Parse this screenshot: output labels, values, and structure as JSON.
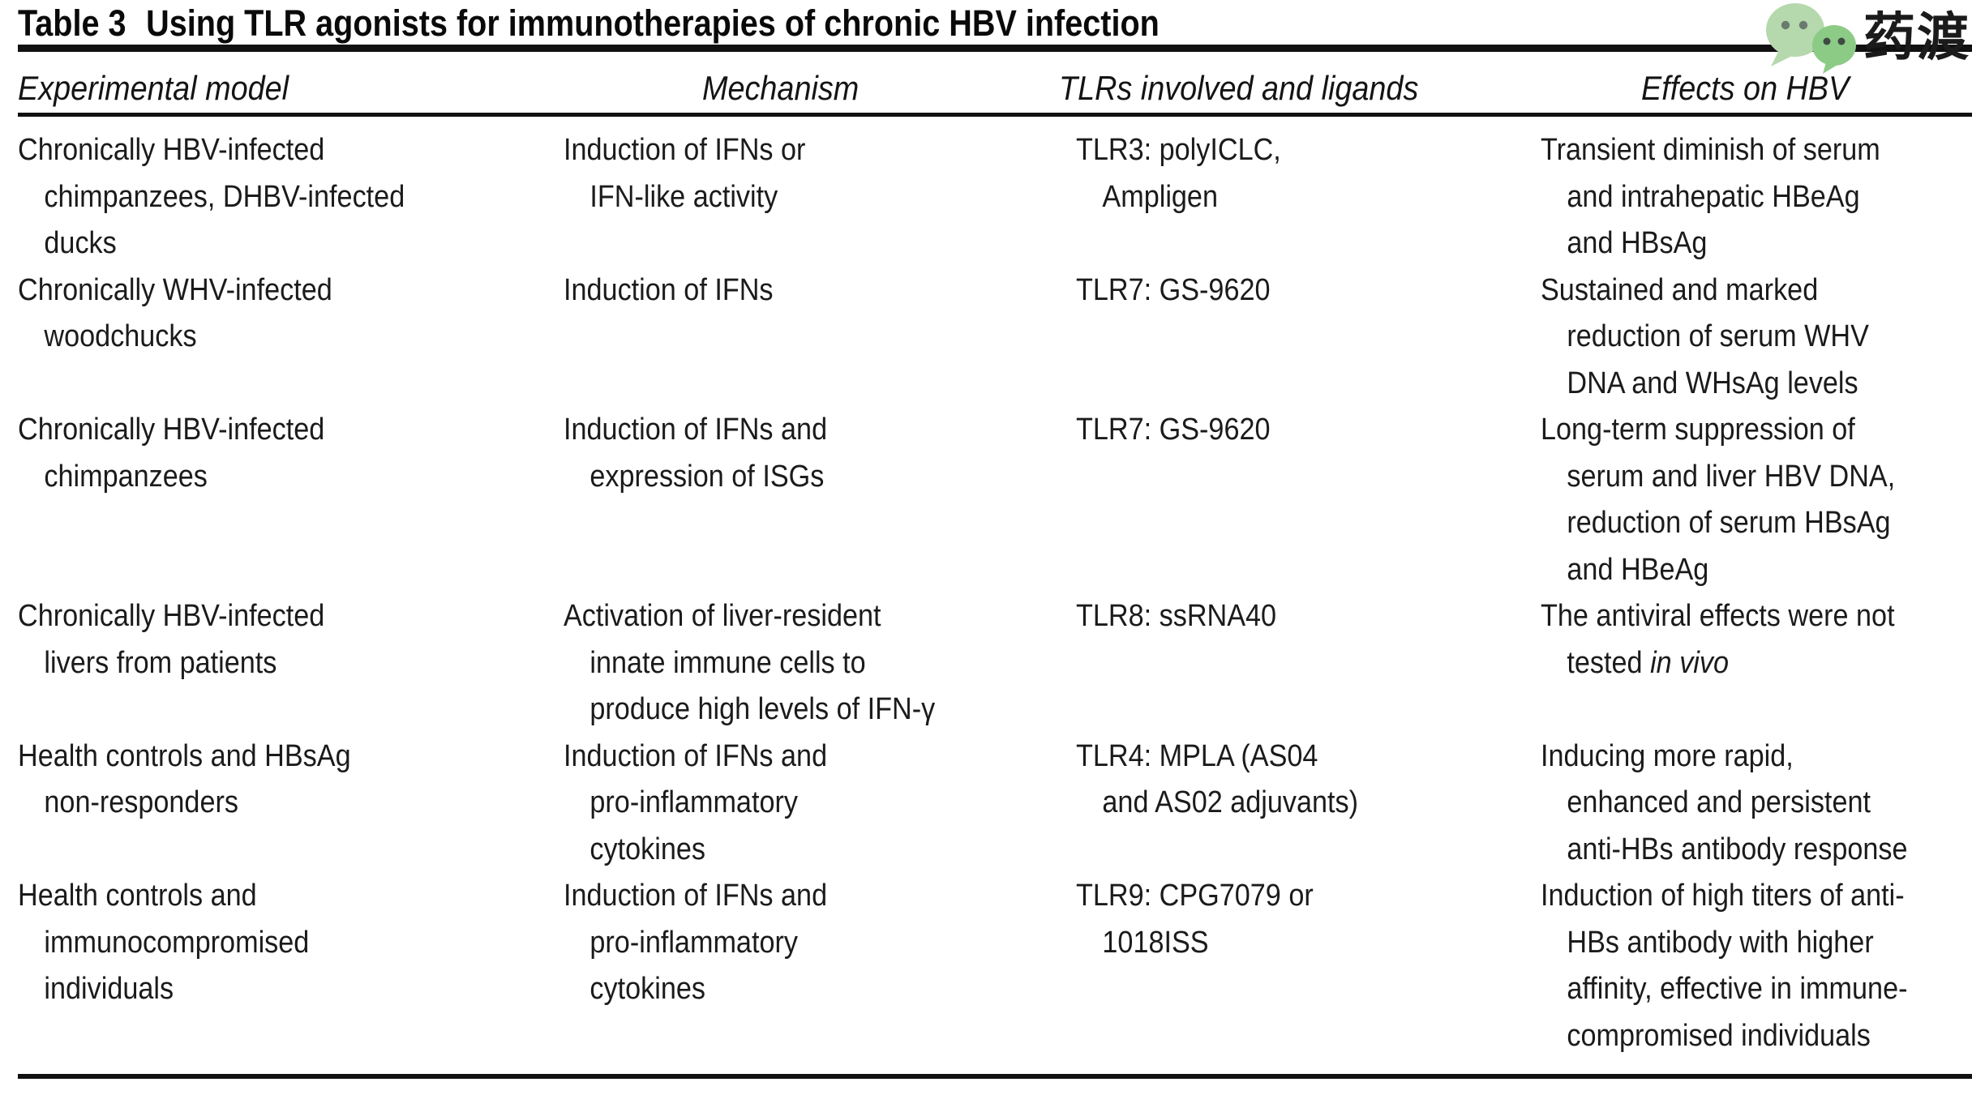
{
  "title": {
    "label": "Table 3",
    "text": "Using TLR agonists for immunotherapies of chronic HBV infection"
  },
  "logo": {
    "brand": "药渡",
    "text_color": "#2fa84f",
    "bubble_large_color": "#b5d8ad",
    "bubble_small_color": "#8ccb86",
    "eye_color_large": "#6a7a6e",
    "eye_color_small": "#3f4a42"
  },
  "rule_color": "#111111",
  "table": {
    "headers": [
      "Experimental model",
      "Mechanism",
      "TLRs involved and ligands",
      "Effects on HBV"
    ],
    "rows": [
      {
        "cells": [
          [
            "Chronically HBV-infected",
            "chimpanzees, DHBV-infected",
            "ducks"
          ],
          [
            "Induction of IFNs or",
            "IFN-like activity"
          ],
          [
            "TLR3: polyICLC,",
            "Ampligen"
          ],
          [
            "Transient diminish of serum",
            "and intrahepatic HBeAg",
            "and HBsAg"
          ]
        ]
      },
      {
        "cells": [
          [
            "Chronically WHV-infected",
            "woodchucks"
          ],
          [
            "Induction of IFNs"
          ],
          [
            "TLR7: GS-9620"
          ],
          [
            "Sustained and marked",
            "reduction of serum WHV",
            "DNA and WHsAg levels"
          ]
        ]
      },
      {
        "cells": [
          [
            "Chronically HBV-infected",
            "chimpanzees"
          ],
          [
            "Induction of IFNs and",
            "expression of ISGs"
          ],
          [
            "TLR7: GS-9620"
          ],
          [
            "Long-term suppression of",
            "serum and liver HBV DNA,",
            "reduction of serum HBsAg",
            "and HBeAg"
          ]
        ]
      },
      {
        "cells": [
          [
            "Chronically HBV-infected",
            "livers from patients"
          ],
          [
            "Activation of liver-resident",
            "innate immune cells to",
            "produce high levels of IFN-γ"
          ],
          [
            "TLR8: ssRNA40"
          ],
          [
            "The antiviral effects were not",
            [
              "tested ",
              {
                "t": "in vivo",
                "italic": true
              }
            ]
          ]
        ]
      },
      {
        "cells": [
          [
            "Health controls and HBsAg",
            "non-responders"
          ],
          [
            "Induction of IFNs and",
            "pro-inflammatory",
            "cytokines"
          ],
          [
            "TLR4: MPLA (AS04",
            "and AS02 adjuvants)"
          ],
          [
            "Inducing more rapid,",
            "enhanced and persistent",
            "anti-HBs antibody response"
          ]
        ]
      },
      {
        "cells": [
          [
            "Health controls and",
            "immunocompromised",
            "individuals"
          ],
          [
            "Induction of IFNs and",
            "pro-inflammatory",
            "cytokines"
          ],
          [
            "TLR9: CPG7079 or",
            "1018ISS"
          ],
          [
            "Induction of high titers of anti-",
            "HBs antibody with higher",
            "affinity, effective in immune-",
            "compromised individuals"
          ]
        ]
      }
    ]
  }
}
